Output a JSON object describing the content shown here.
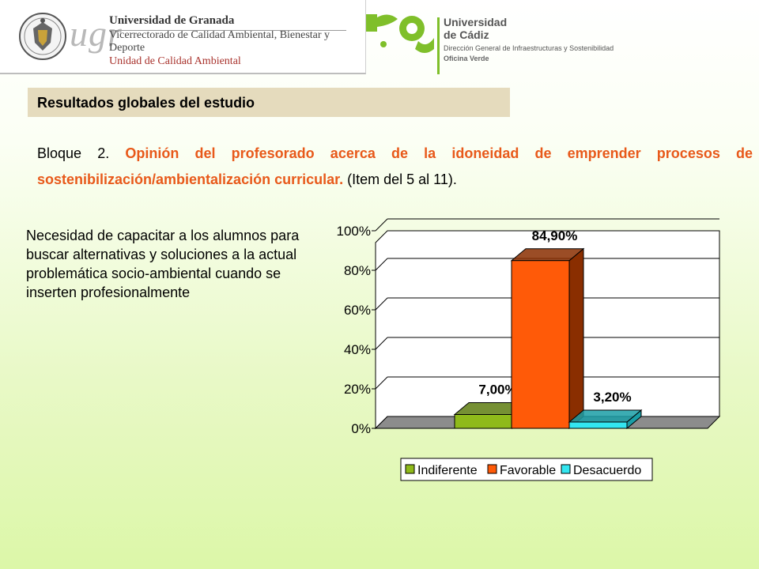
{
  "header": {
    "ugr_mark": "ugr",
    "ugr_line1": "Universidad de Granada",
    "ugr_line2": "Vicerrectorado de Calidad Ambiental, Bienestar y Deporte",
    "ugr_line3": "Unidad de Calidad Ambiental",
    "uca_line1": "Universidad",
    "uca_line2": "de Cádiz",
    "uca_line3": "Dirección General de Infraestructuras y Sostenibilidad",
    "uca_line4": "Oficina Verde"
  },
  "section_title": "Resultados globales del estudio",
  "bloque": {
    "bullet": "",
    "prefix": "Bloque 2. ",
    "highlight": "Opinión del profesorado acerca de la idoneidad de emprender procesos de sostenibilización/ambientalización curricular.",
    "suffix": " (Item del 5 al 11)."
  },
  "description": "Necesidad de capacitar a los alumnos para buscar alternativas y soluciones a la actual problemática socio-ambiental cuando se inserten profesionalmente",
  "chart_data": {
    "type": "bar",
    "categories": [
      "Indiferente",
      "Favorable",
      "Desacuerdo"
    ],
    "values": [
      7.0,
      84.9,
      3.2
    ],
    "data_labels": [
      "7,00%",
      "84,90%",
      "3,20%"
    ],
    "colors": [
      "#8fba1a",
      "#ff5a08",
      "#33e6f0"
    ],
    "side_colors": [
      "#5e7d10",
      "#8a2e00",
      "#1a9ea6"
    ],
    "ylim": [
      0,
      100
    ],
    "yticks": [
      "0%",
      "20%",
      "40%",
      "60%",
      "80%",
      "100%"
    ],
    "grid": true,
    "legend_position": "bottom"
  }
}
